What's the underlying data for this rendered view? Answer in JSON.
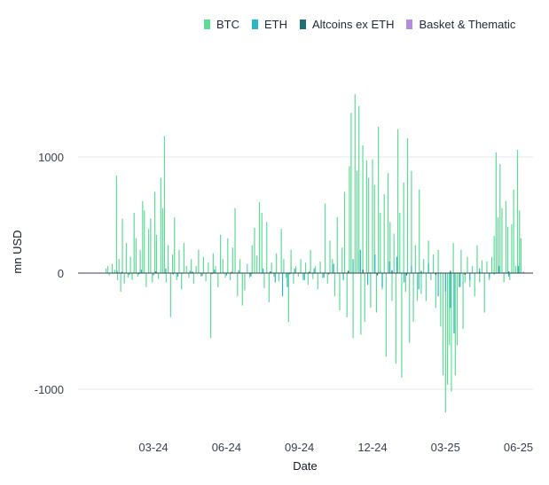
{
  "chart_data": {
    "type": "bar",
    "title": "",
    "xlabel": "Date",
    "ylabel": "mn USD",
    "ylim": [
      -1300,
      1600
    ],
    "yticks": [
      1000,
      0,
      -1000
    ],
    "ytick_labels": [
      "1000",
      "0",
      "-1000"
    ],
    "x_tick_labels": [
      "03-24",
      "06-24",
      "09-24",
      "12-24",
      "03-25",
      "06-25"
    ],
    "x_tick_months": [
      2,
      5,
      8,
      11,
      14,
      17
    ],
    "x_range_months": [
      -1.1,
      17.6
    ],
    "legend": [
      "BTC",
      "ETH",
      "Altcoins ex ETH",
      "Basket & Thematic"
    ],
    "series": [
      {
        "name": "BTC",
        "color": "#5ddc95",
        "points": [
          [
            0.05,
            40
          ],
          [
            0.12,
            60
          ],
          [
            0.18,
            -20
          ],
          [
            0.3,
            80
          ],
          [
            0.4,
            30
          ],
          [
            0.48,
            840
          ],
          [
            0.52,
            -60
          ],
          [
            0.58,
            120
          ],
          [
            0.65,
            -160
          ],
          [
            0.72,
            470
          ],
          [
            0.8,
            -90
          ],
          [
            0.88,
            260
          ],
          [
            0.95,
            -40
          ],
          [
            1.05,
            140
          ],
          [
            1.12,
            -60
          ],
          [
            1.2,
            520
          ],
          [
            1.28,
            300
          ],
          [
            1.35,
            -30
          ],
          [
            1.45,
            200
          ],
          [
            1.55,
            620
          ],
          [
            1.62,
            540
          ],
          [
            1.7,
            -120
          ],
          [
            1.8,
            380
          ],
          [
            1.88,
            470
          ],
          [
            1.95,
            -80
          ],
          [
            2.05,
            700
          ],
          [
            2.12,
            330
          ],
          [
            2.2,
            -50
          ],
          [
            2.3,
            820
          ],
          [
            2.38,
            560
          ],
          [
            2.45,
            1180
          ],
          [
            2.52,
            -80
          ],
          [
            2.6,
            240
          ],
          [
            2.7,
            -380
          ],
          [
            2.78,
            160
          ],
          [
            2.86,
            480
          ],
          [
            2.95,
            -60
          ],
          [
            3.05,
            200
          ],
          [
            3.15,
            -140
          ],
          [
            3.25,
            260
          ],
          [
            3.35,
            60
          ],
          [
            3.45,
            -40
          ],
          [
            3.55,
            120
          ],
          [
            3.65,
            -90
          ],
          [
            3.75,
            60
          ],
          [
            3.85,
            200
          ],
          [
            3.95,
            -30
          ],
          [
            4.05,
            140
          ],
          [
            4.15,
            -70
          ],
          [
            4.25,
            90
          ],
          [
            4.35,
            -560
          ],
          [
            4.45,
            170
          ],
          [
            4.55,
            60
          ],
          [
            4.65,
            -120
          ],
          [
            4.75,
            330
          ],
          [
            4.85,
            120
          ],
          [
            4.95,
            -40
          ],
          [
            5.05,
            300
          ],
          [
            5.15,
            -60
          ],
          [
            5.25,
            220
          ],
          [
            5.35,
            560
          ],
          [
            5.45,
            -200
          ],
          [
            5.55,
            120
          ],
          [
            5.65,
            -280
          ],
          [
            5.75,
            -150
          ],
          [
            5.85,
            80
          ],
          [
            5.95,
            -40
          ],
          [
            6.05,
            240
          ],
          [
            6.15,
            390
          ],
          [
            6.25,
            150
          ],
          [
            6.35,
            610
          ],
          [
            6.45,
            520
          ],
          [
            6.55,
            -130
          ],
          [
            6.65,
            440
          ],
          [
            6.75,
            -250
          ],
          [
            6.85,
            90
          ],
          [
            6.95,
            -30
          ],
          [
            7.05,
            170
          ],
          [
            7.15,
            -70
          ],
          [
            7.25,
            380
          ],
          [
            7.35,
            120
          ],
          [
            7.45,
            -40
          ],
          [
            7.55,
            -420
          ],
          [
            7.65,
            200
          ],
          [
            7.75,
            -90
          ],
          [
            7.85,
            60
          ],
          [
            7.95,
            -30
          ],
          [
            8.05,
            120
          ],
          [
            8.15,
            -60
          ],
          [
            8.25,
            90
          ],
          [
            8.35,
            -100
          ],
          [
            8.45,
            200
          ],
          [
            8.55,
            -50
          ],
          [
            8.65,
            60
          ],
          [
            8.75,
            -140
          ],
          [
            8.85,
            100
          ],
          [
            8.95,
            -40
          ],
          [
            9.05,
            600
          ],
          [
            9.15,
            -90
          ],
          [
            9.25,
            280
          ],
          [
            9.35,
            120
          ],
          [
            9.45,
            -200
          ],
          [
            9.55,
            480
          ],
          [
            9.65,
            -320
          ],
          [
            9.75,
            220
          ],
          [
            9.85,
            700
          ],
          [
            9.95,
            -380
          ],
          [
            10.05,
            920
          ],
          [
            10.12,
            1380
          ],
          [
            10.2,
            -560
          ],
          [
            10.28,
            1540
          ],
          [
            10.36,
            880
          ],
          [
            10.44,
            1440
          ],
          [
            10.52,
            -530
          ],
          [
            10.6,
            1100
          ],
          [
            10.68,
            -420
          ],
          [
            10.76,
            970
          ],
          [
            10.84,
            820
          ],
          [
            10.92,
            -300
          ],
          [
            11.0,
            980
          ],
          [
            11.08,
            760
          ],
          [
            11.16,
            -340
          ],
          [
            11.24,
            1260
          ],
          [
            11.32,
            520
          ],
          [
            11.4,
            -140
          ],
          [
            11.48,
            680
          ],
          [
            11.56,
            -720
          ],
          [
            11.64,
            860
          ],
          [
            11.72,
            440
          ],
          [
            11.8,
            -240
          ],
          [
            11.88,
            340
          ],
          [
            11.96,
            -780
          ],
          [
            12.04,
            1240
          ],
          [
            12.12,
            520
          ],
          [
            12.2,
            -900
          ],
          [
            12.28,
            780
          ],
          [
            12.36,
            -160
          ],
          [
            12.44,
            1160
          ],
          [
            12.52,
            -600
          ],
          [
            12.6,
            880
          ],
          [
            12.68,
            -420
          ],
          [
            12.76,
            240
          ],
          [
            12.84,
            -240
          ],
          [
            12.92,
            720
          ],
          [
            13.0,
            -180
          ],
          [
            13.1,
            120
          ],
          [
            13.2,
            -240
          ],
          [
            13.3,
            280
          ],
          [
            13.4,
            -60
          ],
          [
            13.5,
            160
          ],
          [
            13.6,
            -300
          ],
          [
            13.7,
            200
          ],
          [
            13.8,
            -460
          ],
          [
            13.9,
            -880
          ],
          [
            14.0,
            -1200
          ],
          [
            14.08,
            -960
          ],
          [
            14.16,
            -620
          ],
          [
            14.24,
            -1020
          ],
          [
            14.32,
            260
          ],
          [
            14.4,
            -880
          ],
          [
            14.48,
            -620
          ],
          [
            14.56,
            -120
          ],
          [
            14.64,
            200
          ],
          [
            14.72,
            -480
          ],
          [
            14.8,
            -80
          ],
          [
            14.9,
            140
          ],
          [
            15.0,
            -120
          ],
          [
            15.1,
            60
          ],
          [
            15.2,
            -200
          ],
          [
            15.3,
            240
          ],
          [
            15.4,
            -80
          ],
          [
            15.5,
            110
          ],
          [
            15.6,
            -340
          ],
          [
            15.7,
            100
          ],
          [
            15.8,
            -60
          ],
          [
            15.9,
            140
          ],
          [
            16.0,
            320
          ],
          [
            16.08,
            1040
          ],
          [
            16.16,
            480
          ],
          [
            16.24,
            940
          ],
          [
            16.32,
            560
          ],
          [
            16.4,
            -80
          ],
          [
            16.48,
            620
          ],
          [
            16.56,
            400
          ],
          [
            16.64,
            -60
          ],
          [
            16.72,
            420
          ],
          [
            16.8,
            720
          ],
          [
            16.88,
            60
          ],
          [
            16.96,
            1060
          ],
          [
            17.04,
            540
          ],
          [
            17.1,
            300
          ]
        ]
      },
      {
        "name": "ETH",
        "color": "#29b6c5",
        "points": [
          [
            0.5,
            20
          ],
          [
            1.0,
            -15
          ],
          [
            1.5,
            30
          ],
          [
            2.0,
            -20
          ],
          [
            2.5,
            40
          ],
          [
            3.0,
            -30
          ],
          [
            3.5,
            20
          ],
          [
            4.0,
            -25
          ],
          [
            4.5,
            30
          ],
          [
            5.0,
            -20
          ],
          [
            5.5,
            25
          ],
          [
            6.0,
            -30
          ],
          [
            6.5,
            40
          ],
          [
            7.0,
            -80
          ],
          [
            7.3,
            -200
          ],
          [
            7.5,
            -120
          ],
          [
            7.8,
            40
          ],
          [
            8.2,
            -60
          ],
          [
            8.6,
            40
          ],
          [
            9.0,
            -40
          ],
          [
            9.4,
            80
          ],
          [
            9.8,
            -60
          ],
          [
            10.2,
            120
          ],
          [
            10.5,
            200
          ],
          [
            10.8,
            -100
          ],
          [
            11.1,
            160
          ],
          [
            11.4,
            -120
          ],
          [
            11.7,
            100
          ],
          [
            12.0,
            140
          ],
          [
            12.3,
            -80
          ],
          [
            12.6,
            60
          ],
          [
            12.9,
            -140
          ],
          [
            13.3,
            80
          ],
          [
            13.7,
            -200
          ],
          [
            14.0,
            -160
          ],
          [
            14.2,
            -300
          ],
          [
            14.35,
            -520
          ],
          [
            14.6,
            -120
          ],
          [
            15.0,
            -60
          ],
          [
            15.4,
            40
          ],
          [
            15.8,
            -40
          ],
          [
            16.2,
            60
          ],
          [
            16.6,
            -30
          ],
          [
            17.0,
            60
          ]
        ]
      },
      {
        "name": "Altcoins ex ETH",
        "color": "#1f6f73",
        "points": [
          [
            0.7,
            10
          ],
          [
            1.4,
            -10
          ],
          [
            2.1,
            15
          ],
          [
            2.8,
            -10
          ],
          [
            3.6,
            12
          ],
          [
            4.4,
            -8
          ],
          [
            5.2,
            10
          ],
          [
            6.0,
            -12
          ],
          [
            6.8,
            14
          ],
          [
            7.6,
            -10
          ],
          [
            8.4,
            12
          ],
          [
            9.2,
            -10
          ],
          [
            10.0,
            20
          ],
          [
            10.6,
            30
          ],
          [
            11.2,
            -20
          ],
          [
            11.8,
            25
          ],
          [
            12.4,
            -20
          ],
          [
            13.0,
            18
          ],
          [
            13.6,
            -15
          ],
          [
            14.2,
            20
          ],
          [
            14.8,
            -15
          ],
          [
            15.4,
            12
          ],
          [
            16.0,
            -10
          ],
          [
            16.6,
            14
          ],
          [
            17.2,
            10
          ]
        ]
      },
      {
        "name": "Basket & Thematic",
        "color": "#b58ce0",
        "points": [
          [
            1.8,
            6
          ],
          [
            3.2,
            -5
          ],
          [
            4.9,
            6
          ],
          [
            6.4,
            -5
          ],
          [
            8.0,
            6
          ],
          [
            9.6,
            -5
          ],
          [
            10.9,
            8
          ],
          [
            12.2,
            -6
          ],
          [
            13.8,
            6
          ],
          [
            15.2,
            -5
          ],
          [
            16.4,
            6
          ]
        ]
      }
    ]
  }
}
